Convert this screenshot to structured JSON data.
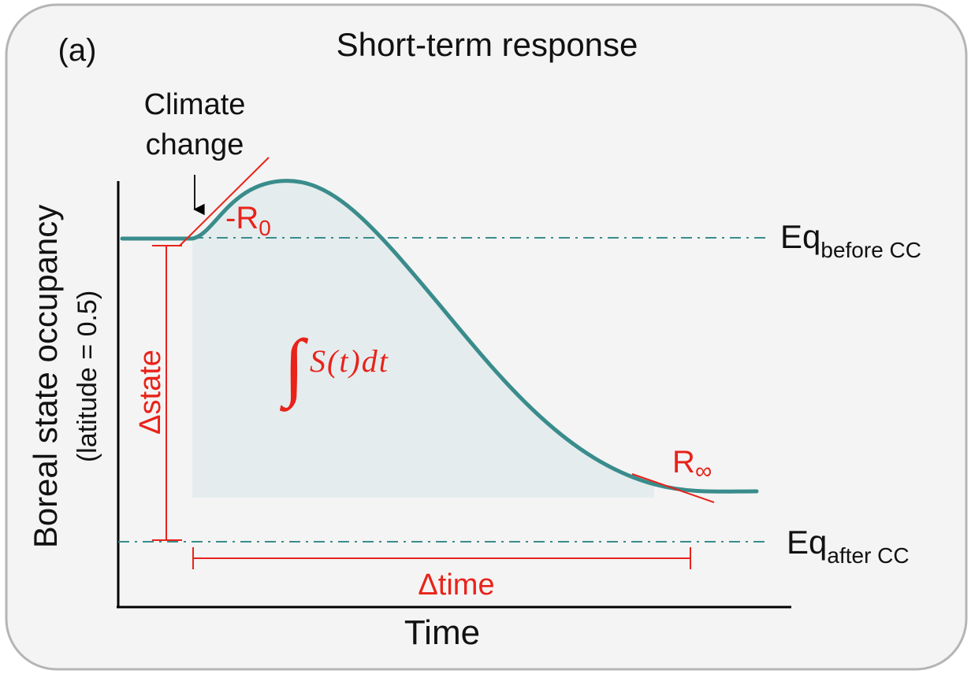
{
  "panel": {
    "label": "(a)",
    "title": "Short-term response"
  },
  "axes": {
    "x_label": "Time",
    "y_label_line1": "Boreal state occupancy",
    "y_label_line2": "(latitude = 0.5)"
  },
  "annotations": {
    "climate_change_line1": "Climate",
    "climate_change_line2": "change",
    "r0_prefix": "-R",
    "r0_sub": "0",
    "rinf_main": "R",
    "rinf_sub": "∞",
    "eq_before_main": "Eq",
    "eq_before_sub": "before CC",
    "eq_after_main": "Eq",
    "eq_after_sub": "after CC",
    "delta_state": "Δstate",
    "delta_time": "Δtime",
    "integral_sign": "∫",
    "integral_expr": "S(t)dt"
  },
  "colors": {
    "curve": "#3a8c8c",
    "eq_line": "#3a8c8c",
    "annotation": "#e8231a",
    "area_fill": "#e5ecee",
    "panel_bg": "#f4f4f4",
    "panel_border": "#b5b5b5"
  }
}
